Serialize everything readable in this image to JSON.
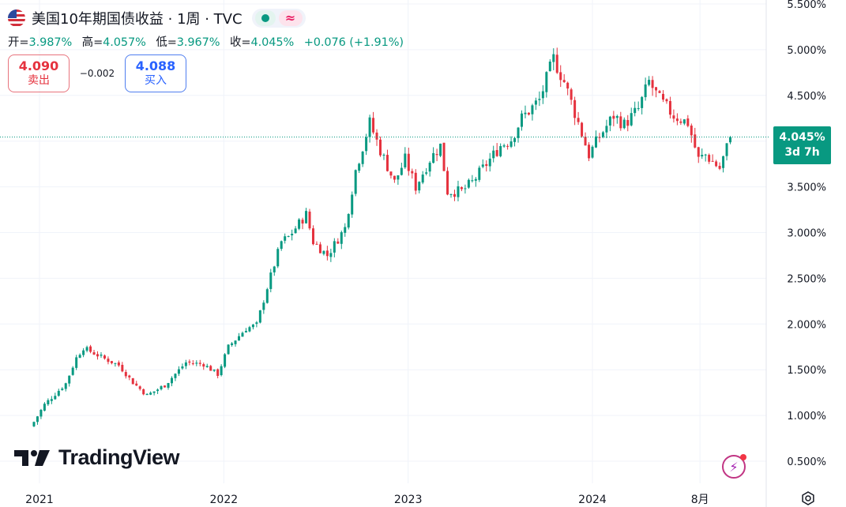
{
  "header": {
    "title": "美国10年期国债收益 · 1周 · TVC",
    "ohlc": {
      "open_label": "开=",
      "open": "3.987%",
      "high_label": "高=",
      "high": "4.057%",
      "low_label": "低=",
      "low": "3.967%",
      "close_label": "收=",
      "close": "4.045%",
      "change": "+0.076 (+1.91%)"
    },
    "status_icons": [
      "market-open-icon",
      "wave-icon"
    ]
  },
  "quote": {
    "sell_price": "4.090",
    "sell_label": "卖出",
    "spread": "−0.002",
    "buy_price": "4.088",
    "buy_label": "买入"
  },
  "price_tag": {
    "value": "4.045%",
    "countdown": "3d 7h"
  },
  "branding": {
    "logo_text": "TradingView"
  },
  "colors": {
    "up": "#089981",
    "down": "#e5323e",
    "grid": "#f0f3fa",
    "axis_text": "#131722",
    "last_price_line": "#089981"
  },
  "chart_data": {
    "type": "candlestick",
    "title": "美国10年期国债收益 · 1周 · TVC",
    "interval": "1周",
    "y_unit": "%",
    "ylim": [
      0.35,
      5.55
    ],
    "y_ticks": [
      "5.500%",
      "5.000%",
      "4.500%",
      "4.000%",
      "3.500%",
      "3.000%",
      "2.500%",
      "2.000%",
      "1.500%",
      "1.000%",
      "0.500%"
    ],
    "x_ticks": [
      "2021",
      "2022",
      "2023",
      "2024",
      "8月"
    ],
    "x_tick_dates": [
      "2021-01-01",
      "2022-01-01",
      "2023-01-01",
      "2024-01-01",
      "2024-08-01"
    ],
    "last_value": 4.045,
    "grid": true,
    "series_anchor_points": {
      "dates": [
        "2020-12-21",
        "2021-01-11",
        "2021-02-22",
        "2021-03-15",
        "2021-03-29",
        "2021-05-10",
        "2021-06-07",
        "2021-07-05",
        "2021-08-02",
        "2021-09-06",
        "2021-10-18",
        "2021-11-22",
        "2021-12-20",
        "2022-01-10",
        "2022-02-14",
        "2022-03-07",
        "2022-03-28",
        "2022-04-25",
        "2022-05-09",
        "2022-06-13",
        "2022-06-27",
        "2022-07-25",
        "2022-08-29",
        "2022-09-19",
        "2022-10-17",
        "2022-11-07",
        "2022-12-05",
        "2022-12-26",
        "2023-01-16",
        "2023-02-13",
        "2023-03-06",
        "2023-03-20",
        "2023-04-17",
        "2023-05-08",
        "2023-06-05",
        "2023-07-03",
        "2023-07-24",
        "2023-08-14",
        "2023-09-18",
        "2023-10-16",
        "2023-11-06",
        "2023-12-04",
        "2023-12-25",
        "2024-01-15",
        "2024-02-12",
        "2024-03-04",
        "2024-04-01",
        "2024-04-22",
        "2024-05-13",
        "2024-06-10",
        "2024-07-08",
        "2024-07-29",
        "2024-08-12",
        "2024-09-09",
        "2024-09-30"
      ],
      "values": [
        0.93,
        1.12,
        1.35,
        1.63,
        1.74,
        1.62,
        1.55,
        1.36,
        1.22,
        1.33,
        1.58,
        1.56,
        1.45,
        1.75,
        1.95,
        1.99,
        2.4,
        2.9,
        2.95,
        3.2,
        2.9,
        2.75,
        3.05,
        3.68,
        4.2,
        3.9,
        3.55,
        3.8,
        3.5,
        3.8,
        3.95,
        3.45,
        3.45,
        3.55,
        3.75,
        3.95,
        4.02,
        4.25,
        4.45,
        4.9,
        4.65,
        4.2,
        3.85,
        4.05,
        4.28,
        4.18,
        4.35,
        4.65,
        4.45,
        4.28,
        4.2,
        3.8,
        3.85,
        3.7,
        4.045
      ]
    }
  }
}
